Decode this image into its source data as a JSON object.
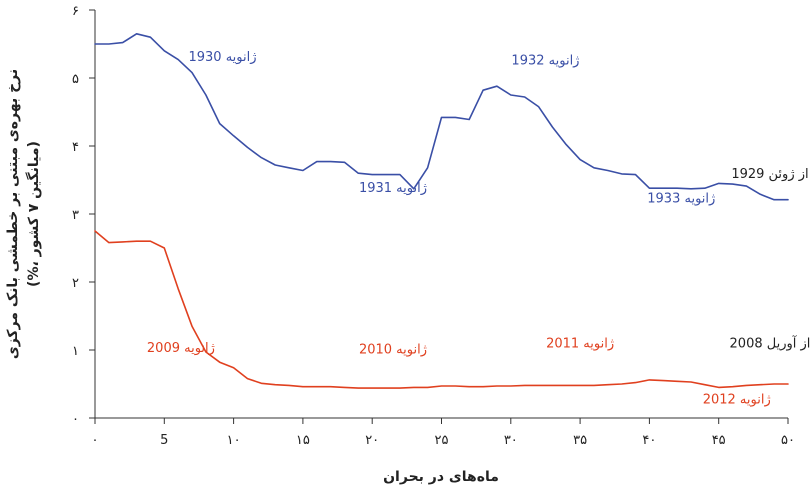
{
  "chart_data": {
    "type": "line",
    "xlabel": "ماه‌های در بحران",
    "ylabel": "نرخ بهره‌ی مبتنی بر خطمشی بانک مرکزی",
    "ylabel_sub": "(%، میانگین ۷ کشور)",
    "xlim": [
      0,
      50
    ],
    "ylim": [
      0,
      6
    ],
    "x_ticks": [
      {
        "value": 0,
        "label": "۰"
      },
      {
        "value": 5,
        "label": "5"
      },
      {
        "value": 10,
        "label": "۱۰"
      },
      {
        "value": 15,
        "label": "۱۵"
      },
      {
        "value": 20,
        "label": "۲۰"
      },
      {
        "value": 25,
        "label": "۲۵"
      },
      {
        "value": 30,
        "label": "۳۰"
      },
      {
        "value": 35,
        "label": "۳۵"
      },
      {
        "value": 40,
        "label": "۴۰"
      },
      {
        "value": 45,
        "label": "۴۵"
      },
      {
        "value": 50,
        "label": "۵۰"
      }
    ],
    "y_ticks": [
      {
        "value": 0,
        "label": "۰"
      },
      {
        "value": 1,
        "label": "۱"
      },
      {
        "value": 2,
        "label": "۲"
      },
      {
        "value": 3,
        "label": "۳"
      },
      {
        "value": 4,
        "label": "۴"
      },
      {
        "value": 5,
        "label": "۵"
      },
      {
        "value": 6,
        "label": "۶"
      }
    ],
    "grid": false,
    "series": [
      {
        "color": "#3a4fa6",
        "x": [
          0,
          1,
          2,
          3,
          4,
          5,
          6,
          7,
          8,
          9,
          10,
          11,
          12,
          13,
          14,
          15,
          16,
          17,
          18,
          19,
          20,
          21,
          22,
          23,
          24,
          25,
          26,
          27,
          28,
          29,
          30,
          31,
          32,
          33,
          34,
          35,
          36,
          37,
          38,
          39,
          40,
          41,
          42,
          43,
          44,
          45,
          46,
          47,
          48,
          49,
          50
        ],
        "y": [
          5.5,
          5.5,
          5.52,
          5.65,
          5.6,
          5.4,
          5.27,
          5.08,
          4.75,
          4.33,
          4.15,
          3.98,
          3.83,
          3.72,
          3.68,
          3.64,
          3.77,
          3.77,
          3.76,
          3.6,
          3.58,
          3.58,
          3.58,
          3.37,
          3.68,
          4.42,
          4.42,
          4.39,
          4.82,
          4.88,
          4.75,
          4.72,
          4.58,
          4.28,
          4.02,
          3.8,
          3.68,
          3.64,
          3.59,
          3.58,
          3.38,
          3.38,
          3.38,
          3.37,
          3.38,
          3.45,
          3.44,
          3.41,
          3.29,
          3.21,
          3.21
        ]
      },
      {
        "color": "#e0401f",
        "x": [
          0,
          1,
          2,
          3,
          4,
          5,
          6,
          7,
          8,
          9,
          10,
          11,
          12,
          13,
          14,
          15,
          16,
          17,
          18,
          19,
          20,
          21,
          22,
          23,
          24,
          25,
          26,
          27,
          28,
          29,
          30,
          31,
          32,
          33,
          34,
          35,
          36,
          37,
          38,
          39,
          40,
          41,
          42,
          43,
          44,
          45,
          46,
          47,
          48,
          49,
          50
        ],
        "y": [
          2.75,
          2.58,
          2.59,
          2.6,
          2.6,
          2.5,
          1.9,
          1.35,
          0.97,
          0.82,
          0.74,
          0.58,
          0.51,
          0.49,
          0.48,
          0.46,
          0.46,
          0.46,
          0.45,
          0.44,
          0.44,
          0.44,
          0.44,
          0.45,
          0.45,
          0.47,
          0.47,
          0.46,
          0.46,
          0.47,
          0.47,
          0.48,
          0.48,
          0.48,
          0.48,
          0.48,
          0.48,
          0.49,
          0.5,
          0.52,
          0.56,
          0.55,
          0.54,
          0.53,
          0.49,
          0.45,
          0.46,
          0.48,
          0.49,
          0.5,
          0.5
        ]
      }
    ],
    "annotations": [
      {
        "text": "ژانویه 1930",
        "x": 9.2,
        "y": 5.25,
        "color": "#3a4fa6"
      },
      {
        "text": "ژانویه 1932",
        "x": 32.5,
        "y": 5.2,
        "color": "#3a4fa6"
      },
      {
        "text": "ژانویه 1931",
        "x": 21.5,
        "y": 3.32,
        "color": "#3a4fa6"
      },
      {
        "text": "ژانویه 1933",
        "x": 42.3,
        "y": 3.17,
        "color": "#3a4fa6"
      },
      {
        "text": "از ژوئن 1929",
        "x": 48.7,
        "y": 3.53,
        "color": "#222222"
      },
      {
        "text": "ژانویه 2009",
        "x": 6.2,
        "y": 0.97,
        "color": "#e0401f"
      },
      {
        "text": "ژانویه 2010",
        "x": 21.5,
        "y": 0.95,
        "color": "#e0401f"
      },
      {
        "text": "ژانویه 2011",
        "x": 35.0,
        "y": 1.04,
        "color": "#e0401f"
      },
      {
        "text": "از آوریل 2008",
        "x": 48.7,
        "y": 1.04,
        "color": "#222222"
      },
      {
        "text": "ژانویه 2012",
        "x": 46.3,
        "y": 0.21,
        "color": "#e0401f"
      }
    ]
  }
}
